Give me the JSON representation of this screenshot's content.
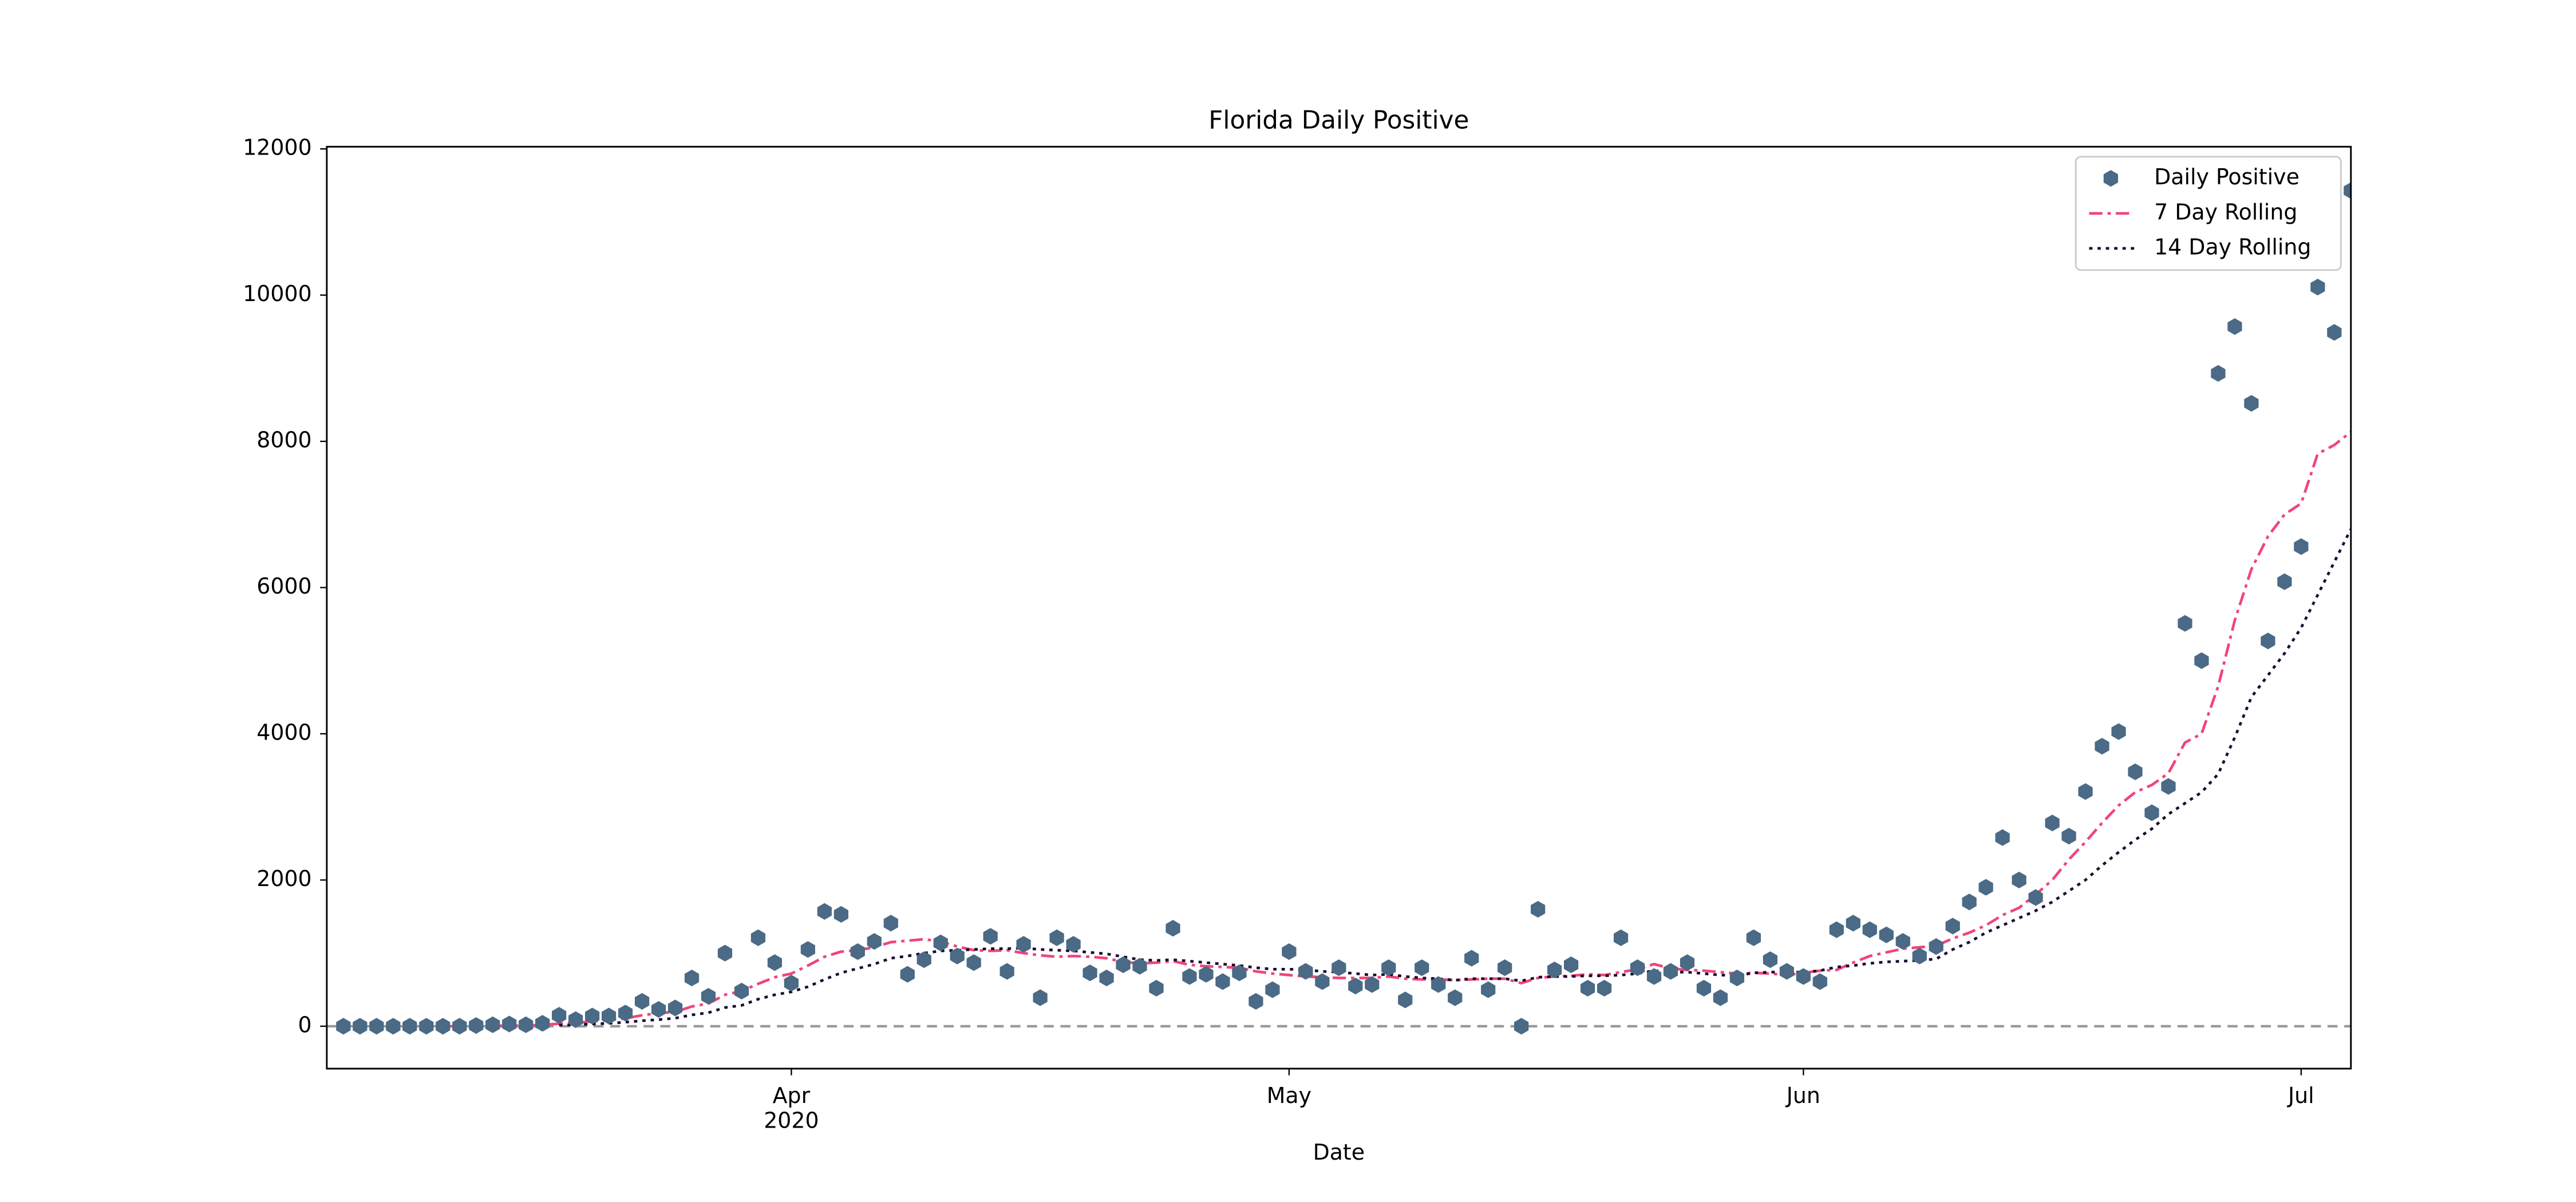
{
  "chart_data": {
    "type": "scatter-line",
    "title": "Florida Daily Positive",
    "x_label": "Date",
    "x_offset_label": "2020",
    "xlim": [
      "2020-03-04",
      "2020-07-04"
    ],
    "xticks": [
      {
        "value": "2020-04-01",
        "label": "Apr"
      },
      {
        "value": "2020-05-01",
        "label": "May"
      },
      {
        "value": "2020-06-01",
        "label": "Jun"
      },
      {
        "value": "2020-07-01",
        "label": "Jul"
      }
    ],
    "ylim": [
      -580,
      12030
    ],
    "yticks": [
      0,
      2000,
      4000,
      6000,
      8000,
      10000,
      12000
    ],
    "reference_line": {
      "value": 0,
      "color": "#999999",
      "style": "dashed"
    },
    "legend": "upper right",
    "x": [
      "2020-03-05",
      "2020-03-06",
      "2020-03-07",
      "2020-03-08",
      "2020-03-09",
      "2020-03-10",
      "2020-03-11",
      "2020-03-12",
      "2020-03-13",
      "2020-03-14",
      "2020-03-15",
      "2020-03-16",
      "2020-03-17",
      "2020-03-18",
      "2020-03-19",
      "2020-03-20",
      "2020-03-21",
      "2020-03-22",
      "2020-03-23",
      "2020-03-24",
      "2020-03-25",
      "2020-03-26",
      "2020-03-27",
      "2020-03-28",
      "2020-03-29",
      "2020-03-30",
      "2020-03-31",
      "2020-04-01",
      "2020-04-02",
      "2020-04-03",
      "2020-04-04",
      "2020-04-05",
      "2020-04-06",
      "2020-04-07",
      "2020-04-08",
      "2020-04-09",
      "2020-04-10",
      "2020-04-11",
      "2020-04-12",
      "2020-04-13",
      "2020-04-14",
      "2020-04-15",
      "2020-04-16",
      "2020-04-17",
      "2020-04-18",
      "2020-04-19",
      "2020-04-20",
      "2020-04-21",
      "2020-04-22",
      "2020-04-23",
      "2020-04-24",
      "2020-04-25",
      "2020-04-26",
      "2020-04-27",
      "2020-04-28",
      "2020-04-29",
      "2020-04-30",
      "2020-05-01",
      "2020-05-02",
      "2020-05-03",
      "2020-05-04",
      "2020-05-05",
      "2020-05-06",
      "2020-05-07",
      "2020-05-08",
      "2020-05-09",
      "2020-05-10",
      "2020-05-11",
      "2020-05-12",
      "2020-05-13",
      "2020-05-14",
      "2020-05-15",
      "2020-05-16",
      "2020-05-17",
      "2020-05-18",
      "2020-05-19",
      "2020-05-20",
      "2020-05-21",
      "2020-05-22",
      "2020-05-23",
      "2020-05-24",
      "2020-05-25",
      "2020-05-26",
      "2020-05-27",
      "2020-05-28",
      "2020-05-29",
      "2020-05-30",
      "2020-05-31",
      "2020-06-01",
      "2020-06-02",
      "2020-06-03",
      "2020-06-04",
      "2020-06-05",
      "2020-06-06",
      "2020-06-07",
      "2020-06-08",
      "2020-06-09",
      "2020-06-10",
      "2020-06-11",
      "2020-06-12",
      "2020-06-13",
      "2020-06-14",
      "2020-06-15",
      "2020-06-16",
      "2020-06-17",
      "2020-06-18",
      "2020-06-19",
      "2020-06-20",
      "2020-06-21",
      "2020-06-22",
      "2020-06-23",
      "2020-06-24",
      "2020-06-25",
      "2020-06-26",
      "2020-06-27",
      "2020-06-28",
      "2020-06-29",
      "2020-06-30",
      "2020-07-01",
      "2020-07-02",
      "2020-07-03",
      "2020-07-04"
    ],
    "series": [
      {
        "name": "Daily Positive",
        "style": "hexagon",
        "color": "#4a6a86",
        "values": [
          0,
          0,
          0,
          0,
          0,
          0,
          0,
          0,
          10,
          20,
          30,
          20,
          40,
          150,
          90,
          140,
          140,
          180,
          340,
          230,
          250,
          660,
          410,
          1000,
          480,
          1210,
          870,
          590,
          1050,
          1570,
          1530,
          1020,
          1160,
          1410,
          710,
          910,
          1140,
          960,
          870,
          1230,
          750,
          1120,
          390,
          1210,
          1120,
          730,
          660,
          840,
          820,
          520,
          1340,
          680,
          710,
          610,
          730,
          340,
          500,
          1020,
          750,
          610,
          800,
          550,
          570,
          800,
          360,
          800,
          570,
          390,
          930,
          500,
          800,
          0,
          1600,
          770,
          840,
          520,
          520,
          1210,
          800,
          680,
          750,
          870,
          520,
          390,
          660,
          1210,
          910,
          750,
          680,
          610,
          1320,
          1410,
          1320,
          1250,
          1160,
          960,
          1090,
          1370,
          1700,
          1900,
          2580,
          2000,
          1760,
          2780,
          2600,
          3210,
          3830,
          4030,
          3480,
          2920,
          3280,
          5510,
          5000,
          8930,
          9570,
          8520,
          5270,
          6080,
          6560,
          10110,
          9490,
          11430
        ]
      },
      {
        "name": "7 Day Rolling",
        "style": "dashdot",
        "color": "#f0457a",
        "values": [
          null,
          null,
          null,
          null,
          null,
          null,
          0,
          0,
          1,
          4,
          9,
          11,
          17,
          35,
          47,
          66,
          84,
          107,
          150,
          180,
          195,
          270,
          310,
          430,
          480,
          580,
          670,
          720,
          830,
          950,
          1020,
          1040,
          1080,
          1150,
          1170,
          1190,
          1160,
          1090,
          1040,
          1030,
          1040,
          1000,
          970,
          950,
          960,
          950,
          930,
          880,
          860,
          870,
          890,
          840,
          820,
          810,
          800,
          750,
          720,
          700,
          680,
          670,
          660,
          660,
          660,
          680,
          650,
          640,
          640,
          630,
          640,
          650,
          650,
          590,
          660,
          680,
          690,
          710,
          700,
          740,
          780,
          850,
          790,
          770,
          760,
          740,
          720,
          730,
          720,
          700,
          730,
          760,
          770,
          870,
          960,
          1010,
          1060,
          1080,
          1100,
          1200,
          1280,
          1380,
          1520,
          1620,
          1800,
          2000,
          2280,
          2520,
          2780,
          3020,
          3200,
          3300,
          3460,
          3880,
          4000,
          4650,
          5550,
          6250,
          6700,
          7000,
          7150,
          7830,
          7950,
          8130
        ]
      },
      {
        "name": "14 Day Rolling",
        "style": "dotted",
        "color": "#1a0a2e",
        "values": [
          null,
          null,
          null,
          null,
          null,
          null,
          null,
          null,
          null,
          null,
          null,
          null,
          null,
          15,
          20,
          30,
          40,
          55,
          75,
          90,
          110,
          155,
          185,
          255,
          285,
          370,
          430,
          470,
          540,
          640,
          730,
          790,
          850,
          930,
          960,
          1000,
          1030,
          1040,
          1050,
          1060,
          1060,
          1070,
          1050,
          1040,
          1030,
          1010,
          990,
          950,
          910,
          900,
          910,
          890,
          870,
          850,
          830,
          800,
          780,
          780,
          770,
          750,
          740,
          720,
          700,
          710,
          680,
          660,
          650,
          630,
          650,
          650,
          650,
          620,
          670,
          680,
          680,
          690,
          690,
          700,
          720,
          760,
          740,
          740,
          720,
          700,
          690,
          730,
          740,
          740,
          740,
          760,
          810,
          830,
          860,
          880,
          890,
          900,
          920,
          1050,
          1150,
          1280,
          1380,
          1480,
          1580,
          1700,
          1850,
          2000,
          2200,
          2380,
          2550,
          2700,
          2900,
          3050,
          3200,
          3450,
          3950,
          4500,
          4800,
          5100,
          5450,
          5900,
          6350,
          6800
        ]
      }
    ]
  }
}
